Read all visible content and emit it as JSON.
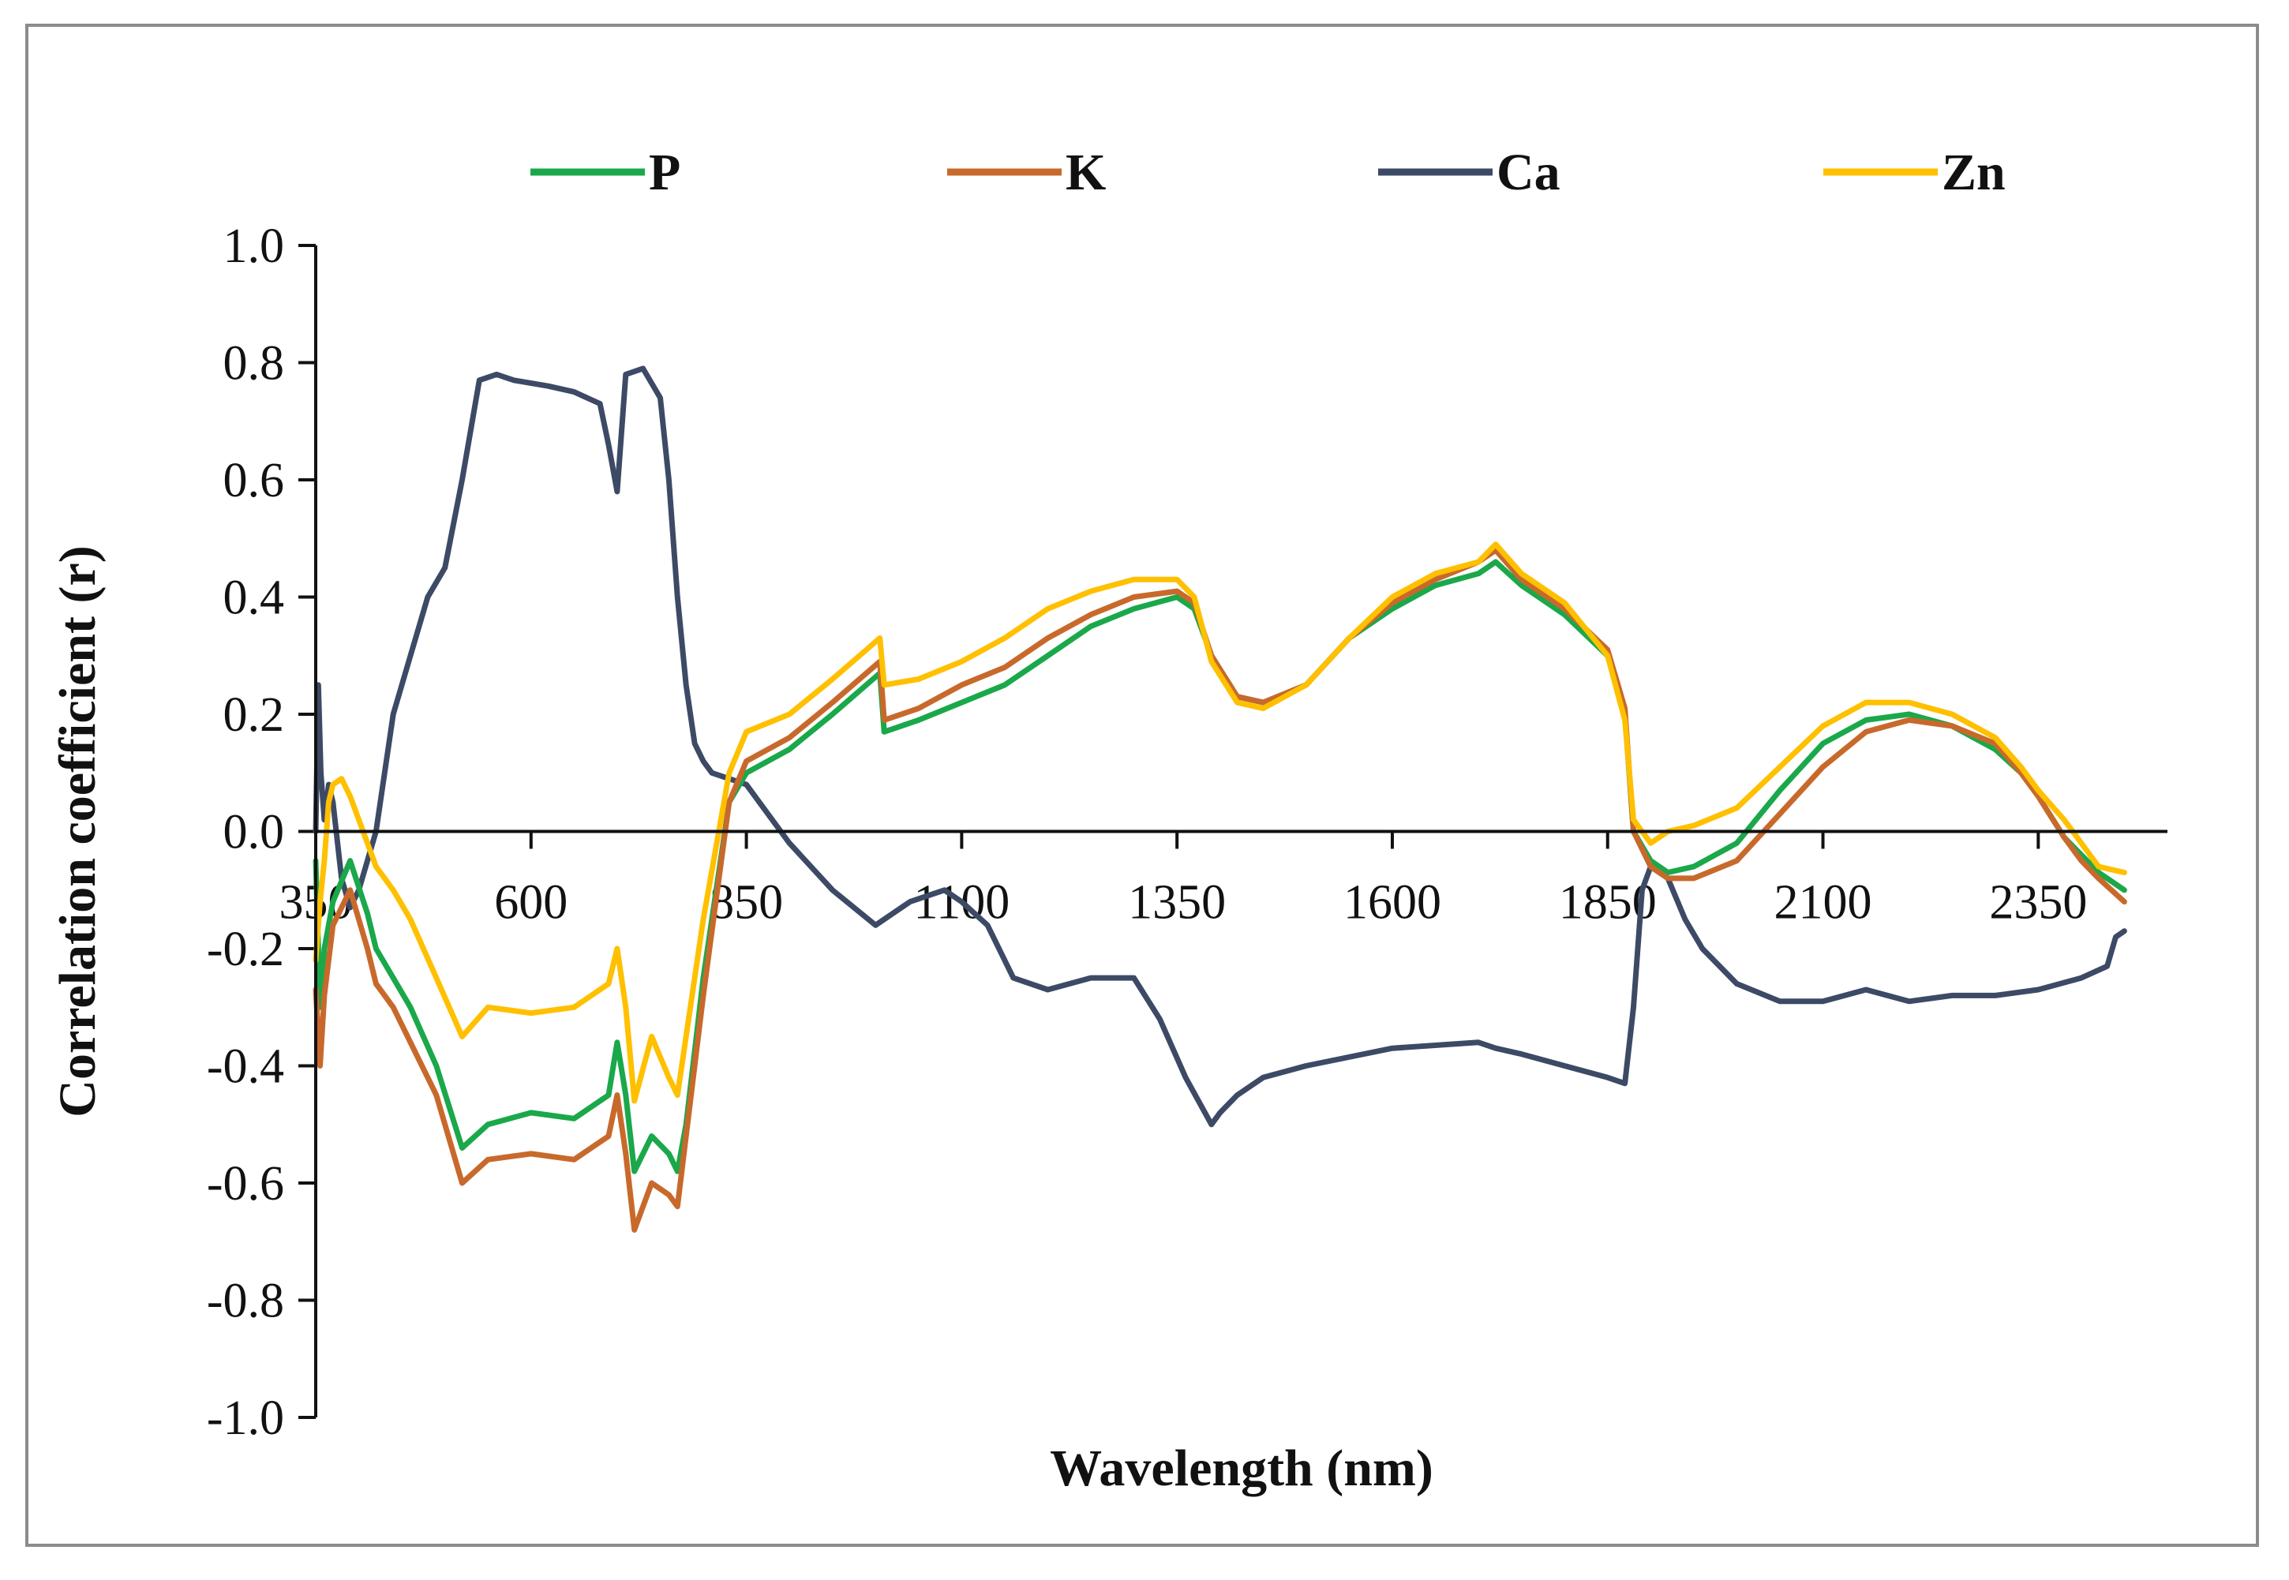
{
  "chart_data": {
    "type": "line",
    "title": "",
    "xlabel": "Wavelength (nm)",
    "ylabel": "Correlation coefficient (r)",
    "xlim": [
      350,
      2500
    ],
    "ylim": [
      -1.0,
      1.0
    ],
    "x_ticks": [
      350,
      600,
      850,
      1100,
      1350,
      1600,
      1850,
      2100,
      2350
    ],
    "x_tick_labels": [
      "350",
      "600",
      "850",
      "1100",
      "1350",
      "1600",
      "1850",
      "2100",
      "2350"
    ],
    "y_ticks": [
      1.0,
      0.8,
      0.6,
      0.4,
      0.2,
      0.0,
      -0.2,
      -0.4,
      -0.6,
      -0.8,
      -1.0
    ],
    "y_tick_labels": [
      "1.0",
      "0.8",
      "0.6",
      "0.4",
      "0.2",
      "0.0",
      "-0.2",
      "-0.4",
      "-0.6",
      "-0.8",
      "-1.0"
    ],
    "legend_position": "top",
    "series": [
      {
        "name": "P",
        "color": "#1aa84a",
        "x": [
          350,
          355,
          360,
          370,
          390,
          410,
          420,
          440,
          460,
          490,
          520,
          550,
          600,
          650,
          690,
          700,
          710,
          720,
          740,
          760,
          770,
          780,
          800,
          830,
          850,
          900,
          950,
          1005,
          1010,
          1050,
          1100,
          1150,
          1200,
          1250,
          1300,
          1350,
          1370,
          1390,
          1420,
          1450,
          1500,
          1550,
          1600,
          1650,
          1700,
          1720,
          1750,
          1800,
          1850,
          1870,
          1880,
          1900,
          1920,
          1950,
          2000,
          2050,
          2100,
          2150,
          2200,
          2250,
          2300,
          2330,
          2350,
          2380,
          2400,
          2420,
          2450
        ],
        "values": [
          -0.05,
          -0.3,
          -0.2,
          -0.12,
          -0.05,
          -0.14,
          -0.2,
          -0.25,
          -0.3,
          -0.4,
          -0.54,
          -0.5,
          -0.48,
          -0.49,
          -0.45,
          -0.36,
          -0.45,
          -0.58,
          -0.52,
          -0.55,
          -0.58,
          -0.5,
          -0.25,
          0.05,
          0.1,
          0.14,
          0.2,
          0.27,
          0.17,
          0.19,
          0.22,
          0.25,
          0.3,
          0.35,
          0.38,
          0.4,
          0.38,
          0.3,
          0.23,
          0.22,
          0.25,
          0.33,
          0.38,
          0.42,
          0.44,
          0.46,
          0.42,
          0.37,
          0.3,
          0.2,
          0.0,
          -0.05,
          -0.07,
          -0.06,
          -0.02,
          0.07,
          0.15,
          0.19,
          0.2,
          0.18,
          0.14,
          0.1,
          0.06,
          -0.01,
          -0.04,
          -0.07,
          -0.1
        ]
      },
      {
        "name": "K",
        "color": "#c8692c",
        "x": [
          350,
          355,
          360,
          370,
          390,
          410,
          420,
          440,
          460,
          490,
          520,
          550,
          600,
          650,
          690,
          700,
          710,
          720,
          740,
          760,
          770,
          780,
          800,
          830,
          850,
          900,
          950,
          1005,
          1010,
          1050,
          1100,
          1150,
          1200,
          1250,
          1300,
          1350,
          1370,
          1390,
          1420,
          1450,
          1500,
          1550,
          1600,
          1650,
          1700,
          1720,
          1750,
          1800,
          1850,
          1870,
          1880,
          1900,
          1920,
          1950,
          2000,
          2050,
          2100,
          2150,
          2200,
          2250,
          2300,
          2330,
          2350,
          2380,
          2400,
          2420,
          2450
        ],
        "values": [
          -0.27,
          -0.4,
          -0.28,
          -0.16,
          -0.1,
          -0.2,
          -0.26,
          -0.3,
          -0.36,
          -0.45,
          -0.6,
          -0.56,
          -0.55,
          -0.56,
          -0.52,
          -0.45,
          -0.55,
          -0.68,
          -0.6,
          -0.62,
          -0.64,
          -0.52,
          -0.28,
          0.05,
          0.12,
          0.16,
          0.22,
          0.29,
          0.19,
          0.21,
          0.25,
          0.28,
          0.33,
          0.37,
          0.4,
          0.41,
          0.39,
          0.3,
          0.23,
          0.22,
          0.25,
          0.33,
          0.39,
          0.43,
          0.46,
          0.48,
          0.43,
          0.38,
          0.31,
          0.21,
          0.0,
          -0.06,
          -0.08,
          -0.08,
          -0.05,
          0.03,
          0.11,
          0.17,
          0.19,
          0.18,
          0.15,
          0.1,
          0.06,
          -0.01,
          -0.05,
          -0.08,
          -0.12
        ]
      },
      {
        "name": "Ca",
        "color": "#3d4a66",
        "x": [
          350,
          353,
          356,
          360,
          365,
          370,
          380,
          390,
          400,
          410,
          420,
          430,
          440,
          460,
          480,
          500,
          520,
          540,
          560,
          580,
          620,
          650,
          680,
          690,
          700,
          710,
          730,
          750,
          760,
          770,
          780,
          790,
          800,
          810,
          830,
          850,
          870,
          900,
          950,
          1000,
          1040,
          1080,
          1100,
          1130,
          1160,
          1200,
          1250,
          1300,
          1330,
          1360,
          1390,
          1400,
          1420,
          1450,
          1500,
          1600,
          1700,
          1720,
          1750,
          1800,
          1850,
          1870,
          1880,
          1890,
          1900,
          1920,
          1940,
          1960,
          2000,
          2050,
          2100,
          2150,
          2200,
          2250,
          2300,
          2350,
          2400,
          2430,
          2440,
          2450
        ],
        "values": [
          0.0,
          0.25,
          0.1,
          0.02,
          0.08,
          0.05,
          -0.08,
          -0.13,
          -0.1,
          -0.05,
          0.0,
          0.1,
          0.2,
          0.3,
          0.4,
          0.45,
          0.6,
          0.77,
          0.78,
          0.77,
          0.76,
          0.75,
          0.73,
          0.66,
          0.58,
          0.78,
          0.79,
          0.74,
          0.6,
          0.4,
          0.25,
          0.15,
          0.12,
          0.1,
          0.09,
          0.08,
          0.04,
          -0.02,
          -0.1,
          -0.16,
          -0.12,
          -0.1,
          -0.12,
          -0.16,
          -0.25,
          -0.27,
          -0.25,
          -0.25,
          -0.32,
          -0.42,
          -0.5,
          -0.48,
          -0.45,
          -0.42,
          -0.4,
          -0.37,
          -0.36,
          -0.37,
          -0.38,
          -0.4,
          -0.42,
          -0.43,
          -0.3,
          -0.1,
          -0.06,
          -0.08,
          -0.15,
          -0.2,
          -0.26,
          -0.29,
          -0.29,
          -0.27,
          -0.29,
          -0.28,
          -0.28,
          -0.27,
          -0.25,
          -0.23,
          -0.18,
          -0.17
        ]
      },
      {
        "name": "Zn",
        "color": "#ffc000",
        "x": [
          350,
          355,
          360,
          365,
          370,
          380,
          390,
          400,
          410,
          420,
          440,
          460,
          490,
          520,
          550,
          600,
          650,
          690,
          700,
          710,
          720,
          740,
          760,
          770,
          780,
          800,
          830,
          850,
          900,
          950,
          1005,
          1010,
          1050,
          1100,
          1150,
          1200,
          1250,
          1300,
          1350,
          1370,
          1390,
          1420,
          1450,
          1500,
          1550,
          1600,
          1650,
          1700,
          1720,
          1750,
          1800,
          1850,
          1870,
          1880,
          1900,
          1920,
          1950,
          2000,
          2050,
          2100,
          2150,
          2200,
          2250,
          2300,
          2330,
          2350,
          2380,
          2400,
          2420,
          2450
        ],
        "values": [
          -0.22,
          -0.12,
          -0.05,
          0.05,
          0.08,
          0.09,
          0.06,
          0.02,
          -0.02,
          -0.06,
          -0.1,
          -0.15,
          -0.25,
          -0.35,
          -0.3,
          -0.31,
          -0.3,
          -0.26,
          -0.2,
          -0.3,
          -0.46,
          -0.35,
          -0.42,
          -0.45,
          -0.35,
          -0.15,
          0.1,
          0.17,
          0.2,
          0.26,
          0.33,
          0.25,
          0.26,
          0.29,
          0.33,
          0.38,
          0.41,
          0.43,
          0.43,
          0.4,
          0.29,
          0.22,
          0.21,
          0.25,
          0.33,
          0.4,
          0.44,
          0.46,
          0.49,
          0.44,
          0.39,
          0.3,
          0.19,
          0.02,
          -0.02,
          0.0,
          0.01,
          0.04,
          0.11,
          0.18,
          0.22,
          0.22,
          0.2,
          0.16,
          0.11,
          0.07,
          0.02,
          -0.02,
          -0.06,
          -0.07
        ]
      }
    ]
  }
}
